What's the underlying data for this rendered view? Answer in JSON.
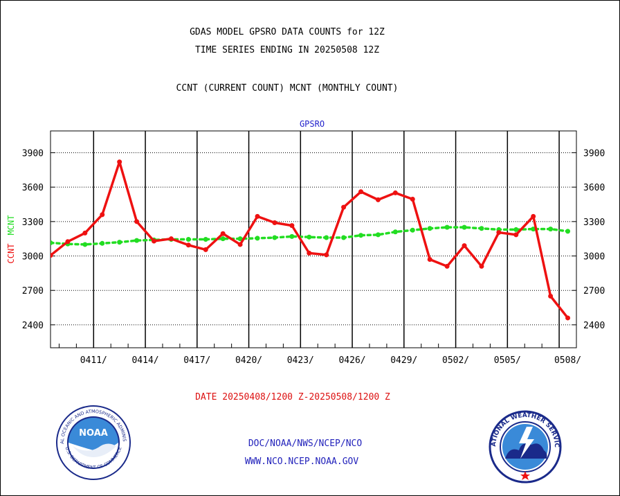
{
  "header": {
    "line1": "GDAS MODEL GPSRO DATA COUNTS for 12Z",
    "line2": "TIME SERIES ENDING IN 20250508 12Z",
    "line3": "CCNT (CURRENT COUNT) MCNT (MONTHLY COUNT)"
  },
  "footer": {
    "date_range": "DATE 20250408/1200 Z-20250508/1200 Z",
    "org": "DOC/NOAA/NWS/NCEP/NCO",
    "url": "WWW.NCO.NCEP.NOAA.GOV"
  },
  "colors": {
    "ccnt": "#ee1111",
    "mcnt": "#22dd22",
    "panel_title": "#2222cc",
    "footer_blue": "#2222bb",
    "footer_red": "#dd1111"
  },
  "chart_data": {
    "type": "line",
    "title": "GPSRO",
    "ylabel_ccnt": "CCNT",
    "ylabel_mcnt": "MCNT",
    "ylim": [
      2200,
      4090
    ],
    "yticks": [
      2400,
      2700,
      3000,
      3300,
      3600,
      3900
    ],
    "ytick_labels": [
      "2400",
      "2700",
      "3000",
      "3300",
      "3600",
      "3900"
    ],
    "xlim": [
      0,
      30.5
    ],
    "x_major_ticks": [
      2.5,
      5.5,
      8.5,
      11.5,
      14.5,
      17.5,
      20.5,
      23.5,
      26.5,
      29.5
    ],
    "x_labels": [
      "0411/",
      "0414/",
      "0417/",
      "0420/",
      "0423/",
      "0426/",
      "0429/",
      "0502/",
      "0505/",
      "0508/"
    ],
    "x_label_positions": [
      2.5,
      5.5,
      8.5,
      11.5,
      14.5,
      17.5,
      20.5,
      23.5,
      26.5,
      30.0
    ],
    "grid": "horizontal",
    "series": [
      {
        "key": "ccnt",
        "x": [
          0,
          1,
          2,
          3,
          4,
          5,
          6,
          7,
          8,
          9,
          10,
          11,
          12,
          13,
          14,
          15,
          16,
          17,
          18,
          19,
          20,
          21,
          22,
          23,
          24,
          25,
          26,
          27,
          28,
          29,
          30
        ],
        "values": [
          3005,
          3125,
          3200,
          3360,
          3820,
          3300,
          3130,
          3150,
          3095,
          3055,
          3195,
          3100,
          3345,
          3290,
          3265,
          3025,
          3010,
          3425,
          3560,
          3490,
          3550,
          3495,
          2970,
          2910,
          3090,
          2910,
          3205,
          3185,
          3345,
          2650,
          2460
        ]
      },
      {
        "key": "mcnt",
        "x": [
          0,
          1,
          2,
          3,
          4,
          5,
          6,
          7,
          8,
          9,
          10,
          11,
          12,
          13,
          14,
          15,
          16,
          17,
          18,
          19,
          20,
          21,
          22,
          23,
          24,
          25,
          26,
          27,
          28,
          29,
          30
        ],
        "values": [
          3115,
          3105,
          3100,
          3110,
          3120,
          3135,
          3140,
          3145,
          3145,
          3145,
          3150,
          3150,
          3155,
          3160,
          3170,
          3165,
          3160,
          3160,
          3180,
          3185,
          3210,
          3225,
          3240,
          3250,
          3250,
          3240,
          3230,
          3230,
          3235,
          3235,
          3215
        ]
      }
    ]
  }
}
